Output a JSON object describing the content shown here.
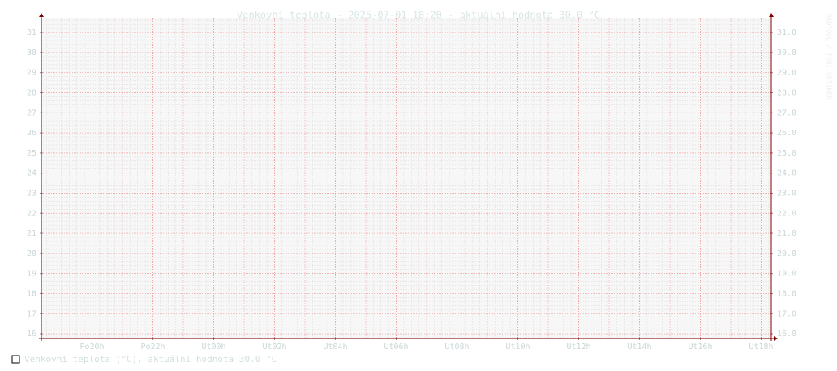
{
  "chart_data": {
    "type": "line",
    "title": "Venkovní teplota - 2025-07-01 18:20 - aktuální hodnota 30.0 °C",
    "side_label": "RRDTOOL / TOBI OETIKER",
    "x": [],
    "xlim": [
      18.333,
      42.333
    ],
    "xticks": [
      {
        "value": 20,
        "label": "Po20h"
      },
      {
        "value": 22,
        "label": "Po22h"
      },
      {
        "value": 24,
        "label": "Ut00h"
      },
      {
        "value": 26,
        "label": "Ut02h"
      },
      {
        "value": 28,
        "label": "Ut04h"
      },
      {
        "value": 30,
        "label": "Ut06h"
      },
      {
        "value": 32,
        "label": "Ut08h"
      },
      {
        "value": 34,
        "label": "Ut10h"
      },
      {
        "value": 36,
        "label": "Ut12h"
      },
      {
        "value": 38,
        "label": "Ut14h"
      },
      {
        "value": 40,
        "label": "Ut16h"
      },
      {
        "value": 42,
        "label": "Ut18h"
      }
    ],
    "ylim": [
      15.76,
      31.73
    ],
    "yticks": [
      16,
      17,
      18,
      19,
      20,
      21,
      22,
      23,
      24,
      25,
      26,
      27,
      28,
      29,
      30,
      31
    ],
    "y2ticks": [
      {
        "value": 16,
        "label": "16.0"
      },
      {
        "value": 17,
        "label": "17.0"
      },
      {
        "value": 18,
        "label": "18.0"
      },
      {
        "value": 19,
        "label": "19.0"
      },
      {
        "value": 20,
        "label": "20.0"
      },
      {
        "value": 21,
        "label": "21.0"
      },
      {
        "value": 22,
        "label": "22.0"
      },
      {
        "value": 23,
        "label": "23.0"
      },
      {
        "value": 24,
        "label": "24.0"
      },
      {
        "value": 25,
        "label": "25.0"
      },
      {
        "value": 26,
        "label": "26.0"
      },
      {
        "value": 27,
        "label": "27.0"
      },
      {
        "value": 28,
        "label": "28.0"
      },
      {
        "value": 29,
        "label": "29.0"
      },
      {
        "value": 30,
        "label": "30.0"
      },
      {
        "value": 31,
        "label": "31.0"
      }
    ],
    "grid": true,
    "series": [
      {
        "name": "Venkovní teplota (°C), aktuální hodnota 30.0 °C",
        "color": "#ffffff",
        "values": []
      }
    ]
  }
}
